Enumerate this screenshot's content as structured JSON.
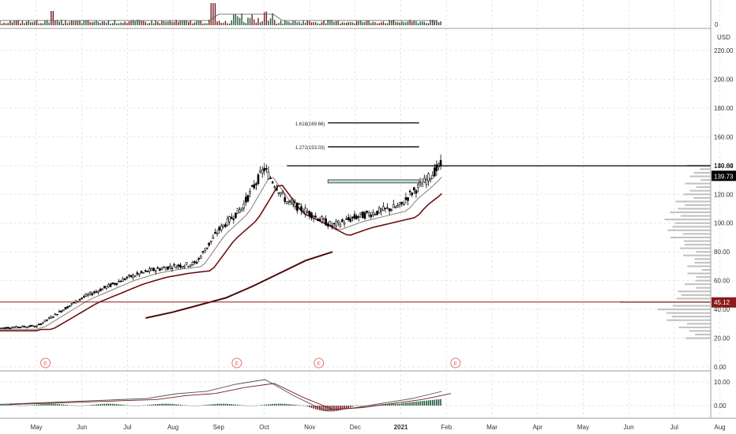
{
  "chart_data": {
    "type": "candlestick",
    "currency": "USD",
    "price_axis": {
      "ticks": [
        "220.00",
        "200.00",
        "180.00",
        "160.00",
        "140.00",
        "120.00",
        "100.00",
        "80.00",
        "60.00",
        "40.00",
        "20.00",
        "0.00"
      ],
      "tick_values": [
        220,
        200,
        180,
        160,
        140,
        120,
        100,
        80,
        60,
        40,
        20,
        0
      ],
      "range": [
        0,
        230
      ]
    },
    "time_axis": {
      "labels": [
        "May",
        "Jun",
        "Jul",
        "Aug",
        "Sep",
        "Oct",
        "Nov",
        "Dec",
        "2021",
        "Feb",
        "Mar",
        "Apr",
        "May",
        "Jun",
        "Jul",
        "Aug"
      ],
      "bold_label": "2021"
    },
    "last_price": "139.73",
    "high_marker": "139.84",
    "support_level": "45.12",
    "fib_levels": [
      {
        "label": "1.618(169.66)",
        "value": 169.66
      },
      {
        "label": "1.272(153.03)",
        "value": 153.03
      }
    ],
    "resistance_level": 139.84,
    "consolidation_box": 129,
    "earnings_marker": "E",
    "volume_axis_label": "0",
    "macd_axis": {
      "ticks": [
        "10.00",
        "0.00"
      ],
      "tick_values": [
        10,
        0
      ]
    },
    "colors": {
      "up": "#26a69a",
      "down": "#ef5350",
      "candle": "#000000",
      "ma_long": "#4a0a0a",
      "ma_mid": "#6b1010",
      "ma_short": "#8a7a7a",
      "support": "#8b1a1a",
      "volume_profile": "#b0b0b0",
      "macd_pos": "#1e5a3c",
      "macd_neg": "#7a1a1a"
    },
    "price_series": {
      "x_month_index": [
        0,
        0.5,
        1,
        1.5,
        2,
        2.5,
        3,
        3.5,
        4,
        4.5,
        5,
        5.5,
        6,
        6.5,
        7,
        7.5,
        8,
        8.2,
        8.5,
        8.9
      ],
      "close": [
        28,
        38,
        48,
        55,
        62,
        67,
        70,
        72,
        95,
        110,
        138,
        115,
        107,
        98,
        104,
        108,
        112,
        120,
        128,
        141
      ]
    },
    "ma_long": [
      34,
      38,
      43,
      48,
      56,
      65,
      74,
      80
    ],
    "macd_line": [
      0.5,
      1,
      1.5,
      2,
      2.5,
      3,
      5,
      6,
      9,
      11,
      4,
      -2,
      -1,
      1,
      3,
      6
    ]
  }
}
